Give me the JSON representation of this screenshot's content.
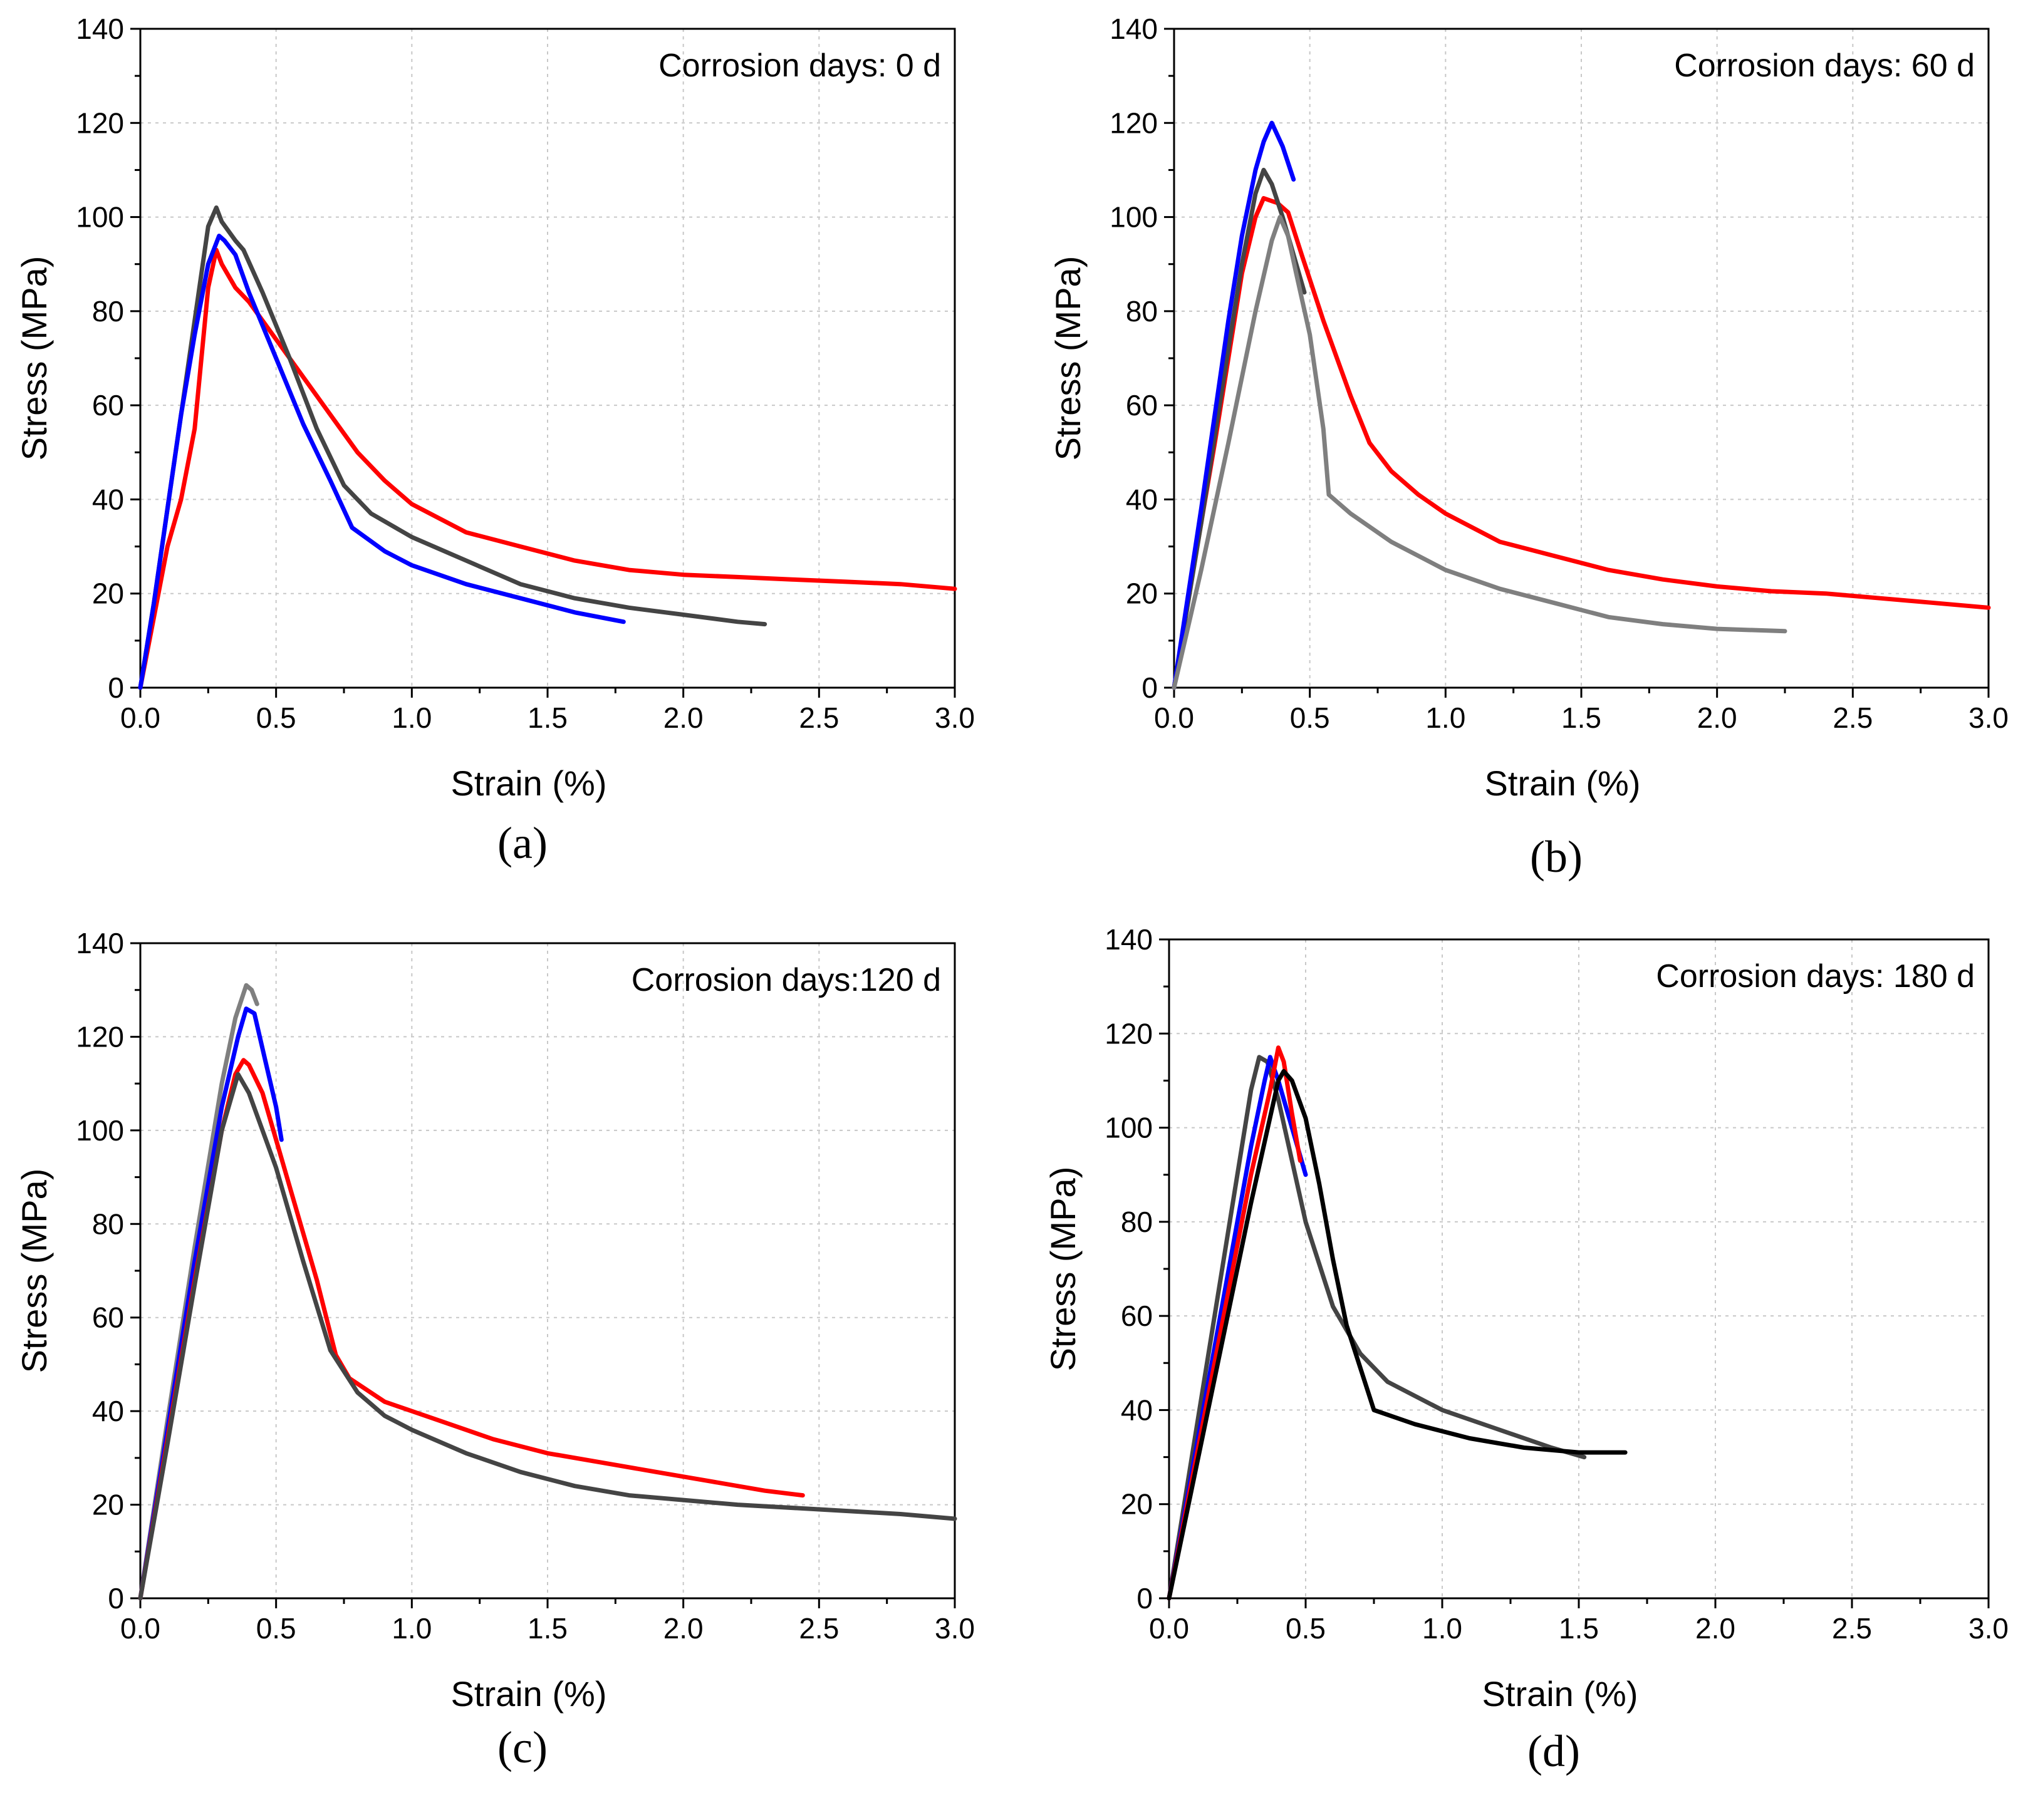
{
  "colors": {
    "red": "#ff0000",
    "blue": "#0000ff",
    "darkgray": "#444444",
    "gray": "#7f7f7f",
    "black": "#000000"
  },
  "chart_data": [
    {
      "type": "line",
      "panel_label": "(a)",
      "annotation": "Corrosion days: 0 d",
      "xlabel": "Strain (%)",
      "ylabel": "Stress (MPa)",
      "xlim": [
        0,
        3
      ],
      "ylim": [
        0,
        140
      ],
      "xticks": [
        "0.0",
        "0.5",
        "1.0",
        "1.5",
        "2.0",
        "2.5",
        "3.0"
      ],
      "yticks": [
        "0",
        "20",
        "40",
        "60",
        "80",
        "100",
        "120",
        "140"
      ],
      "grid": true,
      "series": [
        {
          "name": "specimen-red",
          "color": "red",
          "x": [
            0,
            0.05,
            0.1,
            0.15,
            0.2,
            0.25,
            0.28,
            0.3,
            0.35,
            0.4,
            0.5,
            0.6,
            0.7,
            0.8,
            0.9,
            1.0,
            1.2,
            1.4,
            1.6,
            1.8,
            2.0,
            2.2,
            2.4,
            2.6,
            2.8,
            3.0
          ],
          "y": [
            0,
            15,
            30,
            40,
            55,
            85,
            93,
            90,
            85,
            82,
            74,
            66,
            58,
            50,
            44,
            39,
            33,
            30,
            27,
            25,
            24,
            23.5,
            23,
            22.5,
            22,
            21
          ]
        },
        {
          "name": "specimen-darkgray",
          "color": "darkgray",
          "x": [
            0,
            0.05,
            0.1,
            0.15,
            0.2,
            0.25,
            0.28,
            0.3,
            0.35,
            0.38,
            0.45,
            0.55,
            0.65,
            0.75,
            0.85,
            1.0,
            1.2,
            1.4,
            1.6,
            1.8,
            2.0,
            2.2,
            2.3
          ],
          "y": [
            0,
            18,
            38,
            58,
            78,
            98,
            102,
            99,
            95,
            93,
            84,
            70,
            55,
            43,
            37,
            32,
            27,
            22,
            19,
            17,
            15.5,
            14,
            13.5
          ]
        },
        {
          "name": "specimen-blue",
          "color": "blue",
          "x": [
            0,
            0.05,
            0.1,
            0.15,
            0.2,
            0.25,
            0.29,
            0.31,
            0.35,
            0.4,
            0.5,
            0.6,
            0.7,
            0.78,
            0.9,
            1.0,
            1.2,
            1.4,
            1.6,
            1.78
          ],
          "y": [
            0,
            18,
            38,
            58,
            75,
            90,
            96,
            95,
            92,
            84,
            70,
            56,
            44,
            34,
            29,
            26,
            22,
            19,
            16,
            14
          ]
        }
      ]
    },
    {
      "type": "line",
      "panel_label": "(b)",
      "annotation": "Corrosion days: 60 d",
      "xlabel": "Strain (%)",
      "ylabel": "Stress (MPa)",
      "xlim": [
        0,
        3
      ],
      "ylim": [
        0,
        140
      ],
      "xticks": [
        "0.0",
        "0.5",
        "1.0",
        "1.5",
        "2.0",
        "2.5",
        "3.0"
      ],
      "yticks": [
        "0",
        "20",
        "40",
        "60",
        "80",
        "100",
        "120",
        "140"
      ],
      "grid": true,
      "series": [
        {
          "name": "specimen-red",
          "color": "red",
          "x": [
            0,
            0.05,
            0.1,
            0.15,
            0.2,
            0.25,
            0.3,
            0.33,
            0.38,
            0.42,
            0.47,
            0.55,
            0.65,
            0.72,
            0.8,
            0.9,
            1.0,
            1.2,
            1.4,
            1.6,
            1.8,
            2.0,
            2.2,
            2.4,
            2.6,
            2.8,
            3.0
          ],
          "y": [
            0,
            18,
            35,
            52,
            70,
            88,
            100,
            104,
            103,
            101,
            92,
            78,
            62,
            52,
            46,
            41,
            37,
            31,
            28,
            25,
            23,
            21.5,
            20.5,
            20,
            19,
            18,
            17
          ]
        },
        {
          "name": "specimen-darkgray",
          "color": "darkgray",
          "x": [
            0,
            0.1,
            0.2,
            0.25,
            0.3,
            0.33,
            0.36,
            0.4,
            0.45,
            0.48
          ],
          "y": [
            0,
            35,
            72,
            90,
            105,
            110,
            107,
            100,
            90,
            84
          ]
        },
        {
          "name": "specimen-blue",
          "color": "blue",
          "x": [
            0,
            0.1,
            0.2,
            0.25,
            0.3,
            0.33,
            0.36,
            0.4,
            0.44
          ],
          "y": [
            0,
            38,
            78,
            96,
            110,
            116,
            120,
            115,
            108
          ]
        },
        {
          "name": "specimen-gray",
          "color": "gray",
          "x": [
            0,
            0.1,
            0.2,
            0.3,
            0.36,
            0.39,
            0.42,
            0.45,
            0.5,
            0.55,
            0.57,
            0.65,
            0.8,
            1.0,
            1.2,
            1.4,
            1.6,
            1.8,
            2.0,
            2.25
          ],
          "y": [
            0,
            25,
            52,
            80,
            95,
            100,
            96,
            88,
            75,
            55,
            41,
            37,
            31,
            25,
            21,
            18,
            15,
            13.5,
            12.5,
            12
          ]
        }
      ]
    },
    {
      "type": "line",
      "panel_label": "(c)",
      "annotation": "Corrosion days:120 d",
      "xlabel": "Strain (%)",
      "ylabel": "Stress (MPa)",
      "xlim": [
        0,
        3
      ],
      "ylim": [
        0,
        140
      ],
      "xticks": [
        "0.0",
        "0.5",
        "1.0",
        "1.5",
        "2.0",
        "2.5",
        "3.0"
      ],
      "yticks": [
        "0",
        "20",
        "40",
        "60",
        "80",
        "100",
        "120",
        "140"
      ],
      "grid": true,
      "series": [
        {
          "name": "specimen-gray",
          "color": "gray",
          "x": [
            0,
            0.1,
            0.2,
            0.3,
            0.35,
            0.39,
            0.41,
            0.43
          ],
          "y": [
            0,
            38,
            75,
            110,
            124,
            131,
            130,
            127
          ]
        },
        {
          "name": "specimen-blue",
          "color": "blue",
          "x": [
            0,
            0.1,
            0.2,
            0.3,
            0.36,
            0.39,
            0.42,
            0.46,
            0.5,
            0.52
          ],
          "y": [
            0,
            36,
            72,
            105,
            120,
            126,
            125,
            115,
            105,
            98
          ]
        },
        {
          "name": "specimen-red",
          "color": "red",
          "x": [
            0,
            0.1,
            0.2,
            0.3,
            0.35,
            0.38,
            0.4,
            0.45,
            0.55,
            0.65,
            0.72,
            0.77,
            0.9,
            1.1,
            1.3,
            1.5,
            1.7,
            1.9,
            2.1,
            2.3,
            2.44
          ],
          "y": [
            0,
            34,
            68,
            100,
            112,
            115,
            114,
            108,
            88,
            68,
            52,
            47,
            42,
            38,
            34,
            31,
            29,
            27,
            25,
            23,
            22
          ]
        },
        {
          "name": "specimen-darkgray",
          "color": "darkgray",
          "x": [
            0,
            0.1,
            0.2,
            0.3,
            0.36,
            0.4,
            0.5,
            0.6,
            0.7,
            0.8,
            0.9,
            1.0,
            1.2,
            1.4,
            1.6,
            1.8,
            2.0,
            2.2,
            2.5,
            2.8,
            3.0
          ],
          "y": [
            0,
            33,
            67,
            100,
            112,
            108,
            92,
            72,
            53,
            44,
            39,
            36,
            31,
            27,
            24,
            22,
            21,
            20,
            19,
            18,
            17
          ]
        }
      ]
    },
    {
      "type": "line",
      "panel_label": "(d)",
      "annotation": "Corrosion days: 180 d",
      "xlabel": "Strain (%)",
      "ylabel": "Stress (MPa)",
      "xlim": [
        0,
        3
      ],
      "ylim": [
        0,
        140
      ],
      "xticks": [
        "0.0",
        "0.5",
        "1.0",
        "1.5",
        "2.0",
        "2.5",
        "3.0"
      ],
      "yticks": [
        "0",
        "20",
        "40",
        "60",
        "80",
        "100",
        "120",
        "140"
      ],
      "grid": true,
      "series": [
        {
          "name": "specimen-darkgray",
          "color": "darkgray",
          "x": [
            0,
            0.1,
            0.2,
            0.3,
            0.33,
            0.36,
            0.4,
            0.5,
            0.6,
            0.7,
            0.8,
            1.0,
            1.2,
            1.4,
            1.52
          ],
          "y": [
            0,
            36,
            72,
            108,
            115,
            114,
            106,
            80,
            62,
            52,
            46,
            40,
            36,
            32,
            30
          ]
        },
        {
          "name": "specimen-blue",
          "color": "blue",
          "x": [
            0,
            0.1,
            0.2,
            0.3,
            0.35,
            0.37,
            0.4,
            0.45,
            0.5
          ],
          "y": [
            0,
            32,
            64,
            96,
            110,
            115,
            110,
            100,
            90
          ]
        },
        {
          "name": "specimen-red",
          "color": "red",
          "x": [
            0,
            0.1,
            0.2,
            0.3,
            0.37,
            0.4,
            0.42,
            0.45,
            0.48
          ],
          "y": [
            0,
            30,
            60,
            90,
            108,
            117,
            114,
            103,
            93
          ]
        },
        {
          "name": "specimen-black",
          "color": "black",
          "x": [
            0,
            0.1,
            0.2,
            0.3,
            0.4,
            0.42,
            0.45,
            0.5,
            0.55,
            0.6,
            0.65,
            0.75,
            0.9,
            1.1,
            1.3,
            1.5,
            1.67
          ],
          "y": [
            0,
            28,
            56,
            84,
            110,
            112,
            110,
            102,
            88,
            72,
            58,
            40,
            37,
            34,
            32,
            31,
            31
          ]
        }
      ]
    }
  ]
}
